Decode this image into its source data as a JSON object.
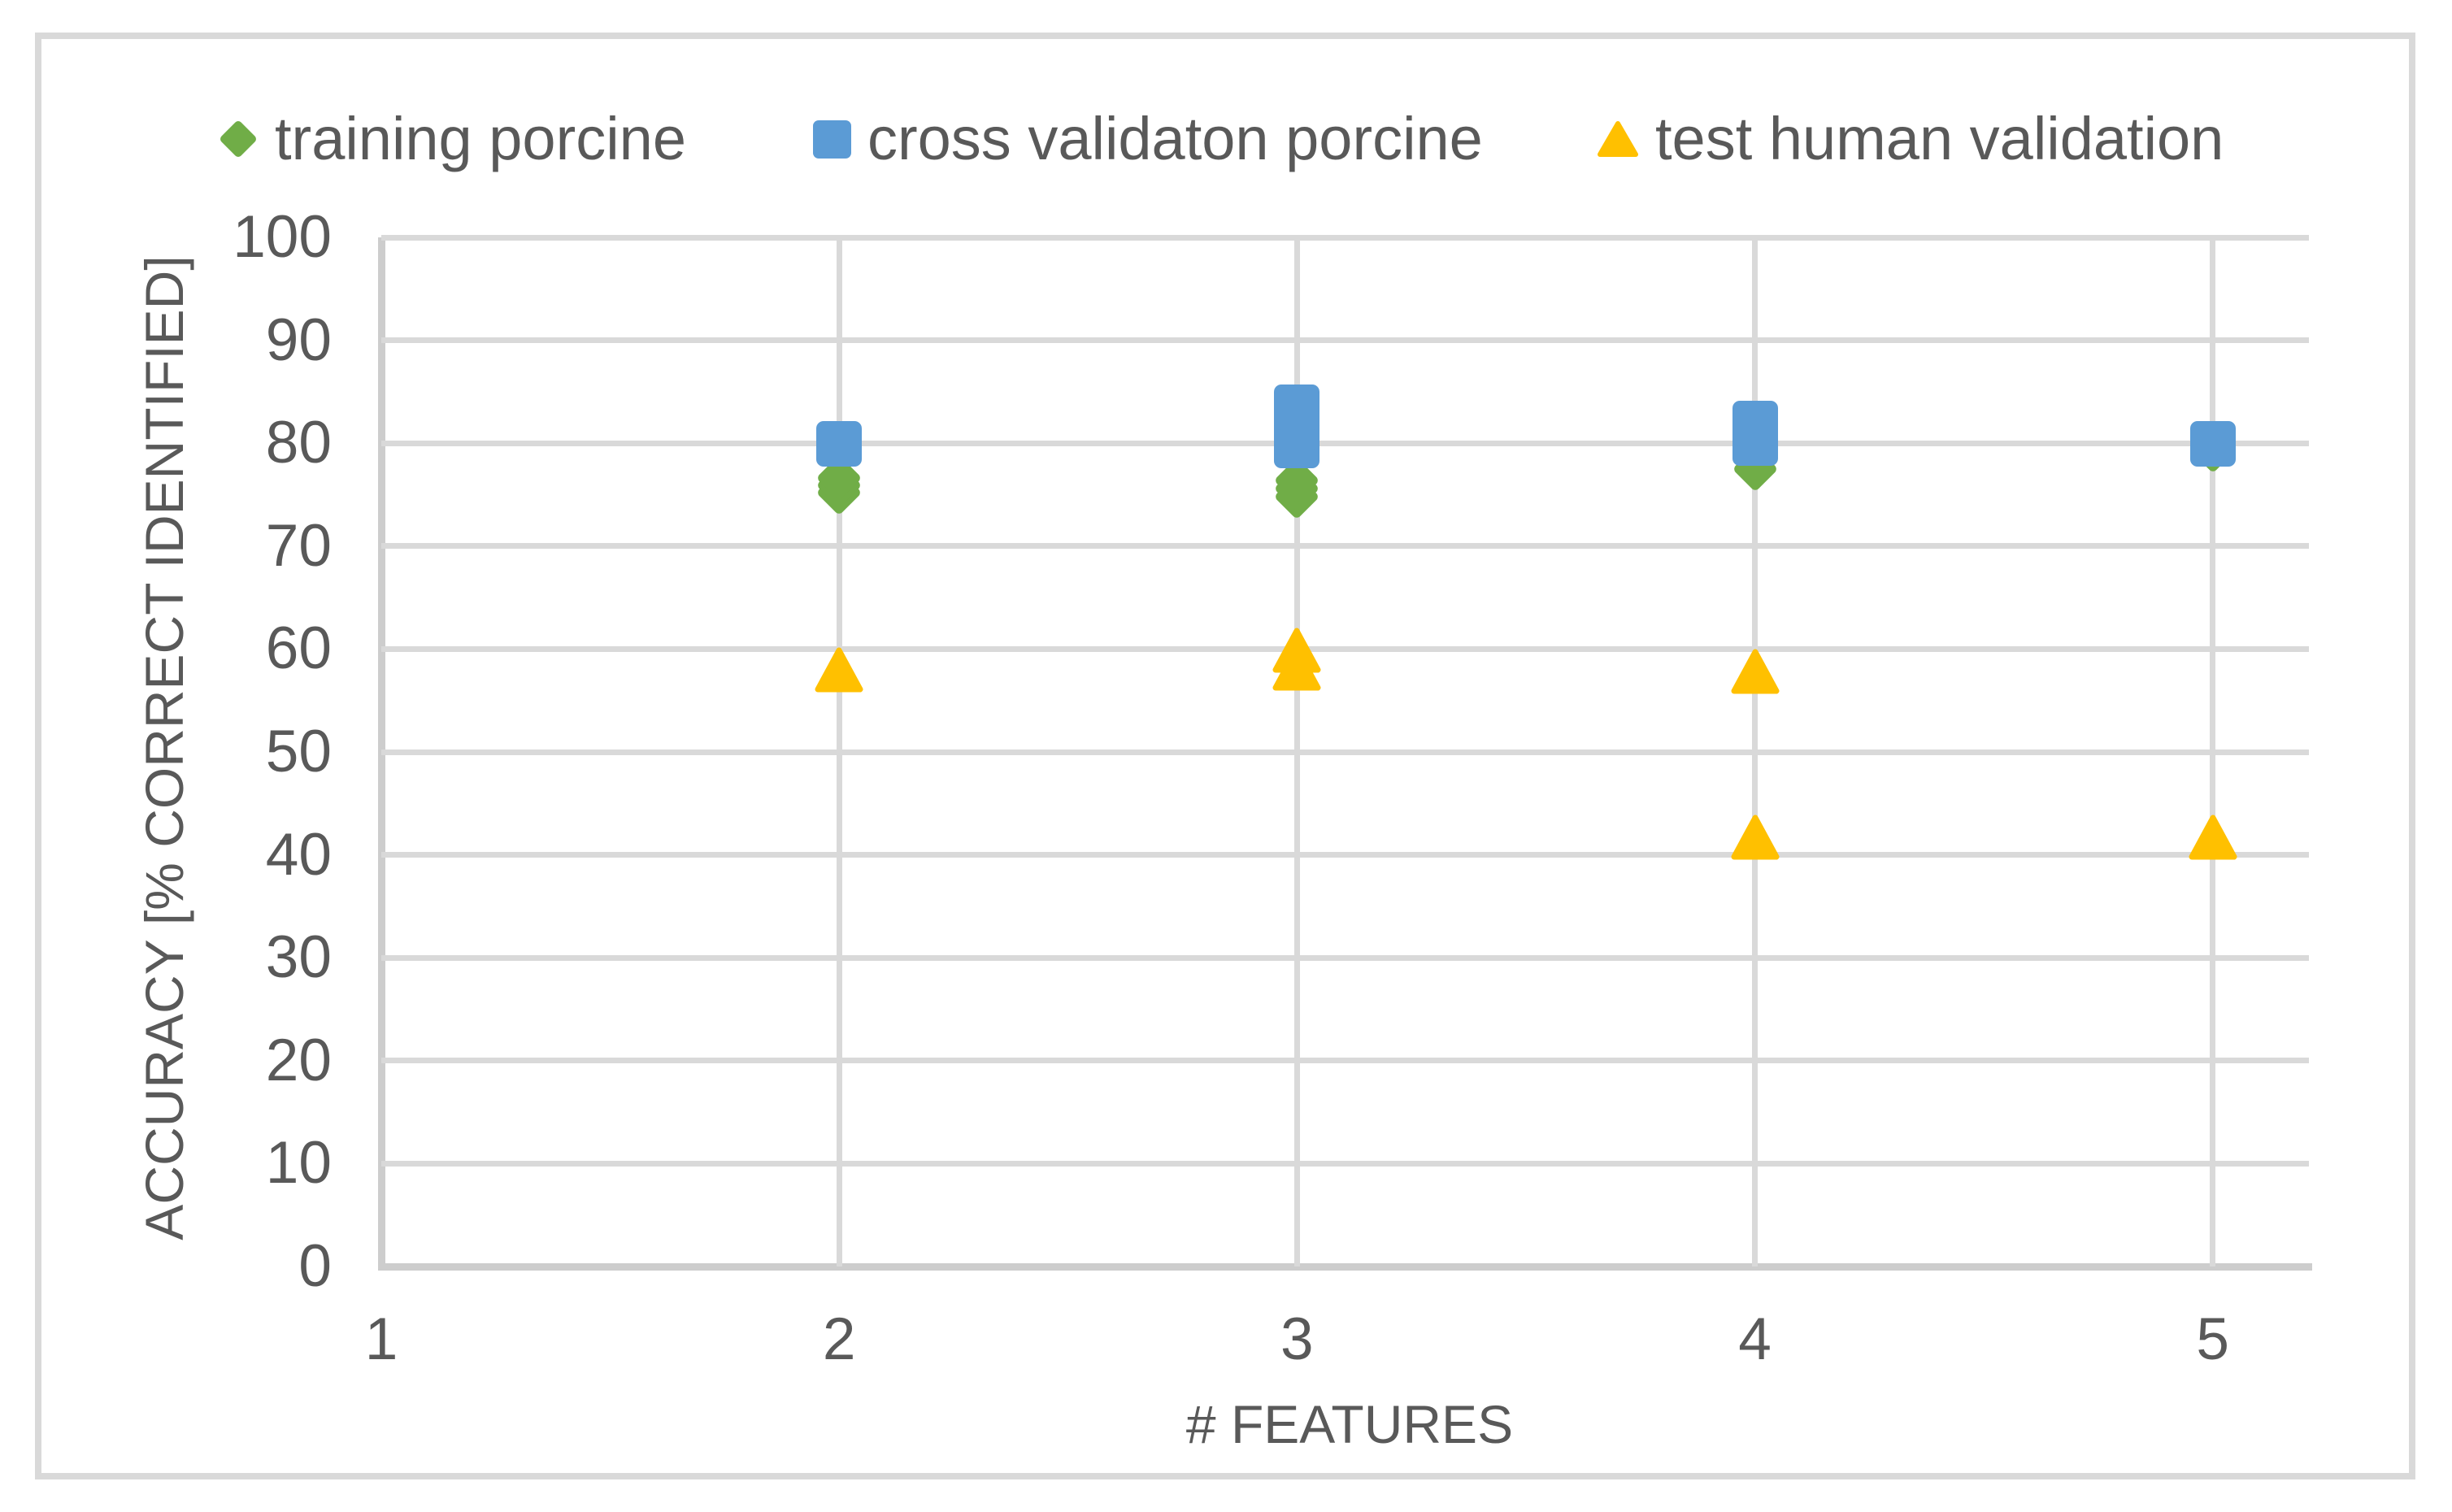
{
  "figure": {
    "background_color": "#ffffff",
    "border_color": "#d9d9d9",
    "text_color": "#595959",
    "gridline_color": "#d9d9d9",
    "axis_line_color": "#cdcdcd"
  },
  "chart_data": {
    "type": "scatter",
    "title": "",
    "xlabel": "# FEATURES",
    "ylabel": "ACCURACY [% CORRECT IDENTIFIED]",
    "xlim": [
      1,
      5.21
    ],
    "ylim": [
      0,
      100
    ],
    "x_ticks": [
      1,
      2,
      3,
      4,
      5
    ],
    "y_ticks": [
      0,
      10,
      20,
      30,
      40,
      50,
      60,
      70,
      80,
      90,
      100
    ],
    "grid": true,
    "legend_position": "top",
    "series": [
      {
        "name": "training porcine",
        "marker": "diamond",
        "color": "#70AD47",
        "points": [
          [
            2,
            75.2
          ],
          [
            2,
            75.9
          ],
          [
            2,
            76.6
          ],
          [
            3,
            74.8
          ],
          [
            3,
            75.6
          ],
          [
            3,
            76.4
          ],
          [
            4,
            77.5
          ],
          [
            5,
            79.3
          ]
        ]
      },
      {
        "name": "cross validaton porcine",
        "marker": "square",
        "color": "#5B9BD5",
        "points": [
          [
            2,
            79.9
          ],
          [
            3,
            79.8
          ],
          [
            3,
            81.6
          ],
          [
            3,
            83.5
          ],
          [
            4,
            80.0
          ],
          [
            4,
            81.9
          ],
          [
            5,
            79.9
          ]
        ]
      },
      {
        "name": "test human validation",
        "marker": "triangle",
        "color": "#FFC000",
        "points": [
          [
            2,
            58.0
          ],
          [
            3,
            58.1
          ],
          [
            3,
            59.9
          ],
          [
            4,
            57.8
          ],
          [
            4,
            41.7
          ],
          [
            5,
            41.7
          ]
        ]
      }
    ]
  }
}
